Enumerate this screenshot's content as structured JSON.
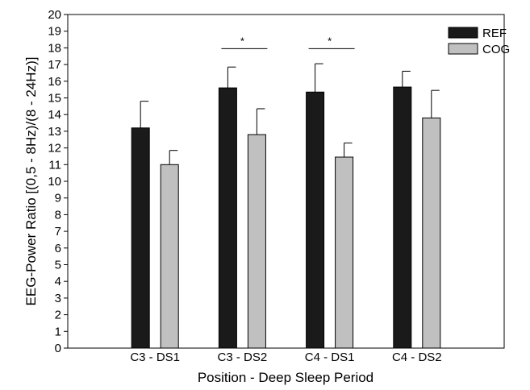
{
  "chart_data": {
    "type": "bar",
    "title": "",
    "xlabel": "Position - Deep Sleep Period",
    "ylabel": "EEG-Power Ratio [(0,5 - 8Hz)/(8 - 24Hz)]",
    "ylim": [
      0,
      20
    ],
    "yticks": [
      "0",
      "1",
      "2",
      "3",
      "4",
      "5",
      "6",
      "7",
      "8",
      "9",
      "10",
      "11",
      "12",
      "13",
      "14",
      "15",
      "16",
      "17",
      "18",
      "19",
      "20"
    ],
    "categories": [
      "C3 - DS1",
      "C3 - DS2",
      "C4 - DS1",
      "C4 - DS2"
    ],
    "series": [
      {
        "name": "REF",
        "color": "#1a1a1a",
        "values": [
          13.2,
          15.6,
          15.35,
          15.65
        ],
        "error_plus": [
          1.6,
          1.25,
          1.7,
          0.95
        ]
      },
      {
        "name": "COG",
        "color": "#c0c0c0",
        "values": [
          11.0,
          12.8,
          11.45,
          13.8
        ],
        "error_plus": [
          0.85,
          1.55,
          0.85,
          1.65
        ]
      }
    ],
    "significance": [
      {
        "category": "C3 - DS2",
        "y": 17.95,
        "label": "*"
      },
      {
        "category": "C4 - DS1",
        "y": 17.95,
        "label": "*"
      }
    ],
    "legend_position": "top-right",
    "grid": false
  }
}
